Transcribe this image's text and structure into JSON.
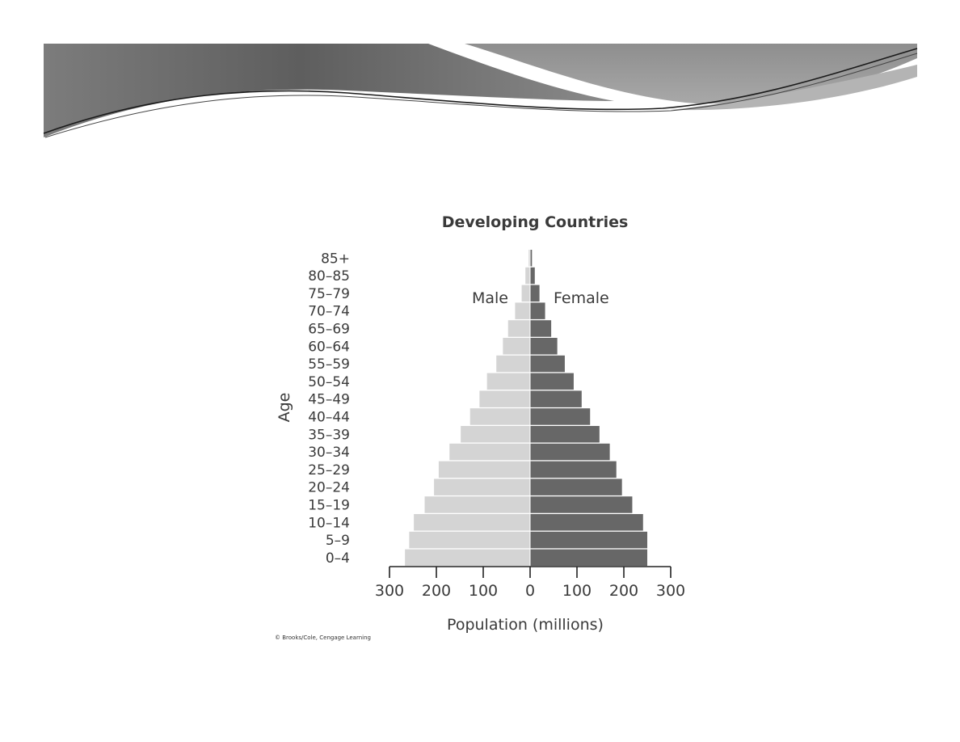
{
  "chart_data": {
    "type": "bar",
    "orientation": "horizontal-population-pyramid",
    "title": "Developing Countries",
    "xlabel": "Population (millions)",
    "ylabel": "Age",
    "xlim": [
      -300,
      300
    ],
    "x_ticks": [
      -300,
      -200,
      -100,
      0,
      100,
      200,
      300
    ],
    "x_tick_labels": [
      "300",
      "200",
      "100",
      "0",
      "100",
      "200",
      "300"
    ],
    "grid": false,
    "categories": [
      "85+",
      "80–85",
      "75–79",
      "70–74",
      "65–69",
      "60–64",
      "55–59",
      "50–54",
      "45–49",
      "40–44",
      "35–39",
      "30–34",
      "25–29",
      "20–24",
      "15–19",
      "10–14",
      "5–9",
      "0–4"
    ],
    "series": [
      {
        "name": "Male",
        "color": "#d4d4d4",
        "values": [
          3,
          10,
          18,
          32,
          47,
          58,
          72,
          92,
          108,
          128,
          148,
          172,
          195,
          205,
          225,
          248,
          258,
          267
        ]
      },
      {
        "name": "Female",
        "color": "#676767",
        "values": [
          4,
          10,
          20,
          32,
          45,
          58,
          74,
          93,
          110,
          128,
          148,
          170,
          184,
          196,
          218,
          241,
          250,
          250
        ]
      }
    ]
  },
  "credit": "© Brooks/Cole, Cengage Learning"
}
